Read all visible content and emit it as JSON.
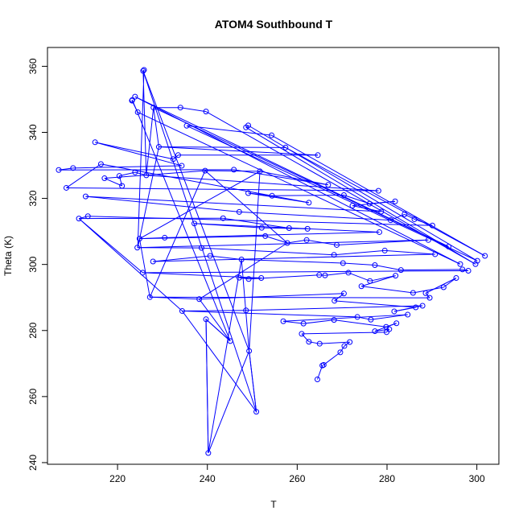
{
  "chart_data": {
    "type": "scatter",
    "title": "ATOM4 Southbound T",
    "xlabel": "T",
    "ylabel": "Theta (K)",
    "xlim": [
      204.4,
      304.9
    ],
    "ylim": [
      239.5,
      365.7
    ],
    "xticks": [
      220,
      240,
      260,
      280,
      300
    ],
    "yticks": [
      240,
      260,
      280,
      300,
      320,
      340,
      360
    ],
    "grid": false,
    "legend": "none",
    "color": "#0000ff",
    "marker": "open-circle",
    "connected": true,
    "points": [
      [
        225.9,
        358.9
      ],
      [
        225.7,
        358.6
      ],
      [
        250.9,
        255.4
      ],
      [
        249.3,
        273.8
      ],
      [
        240.2,
        242.9
      ],
      [
        239.7,
        283.4
      ],
      [
        245.1,
        276.8
      ],
      [
        223.3,
        349.8
      ],
      [
        223.2,
        349.6
      ],
      [
        224.5,
        346.1
      ],
      [
        296.3,
        300.1
      ],
      [
        223.9,
        350.8
      ],
      [
        293.7,
        305.4
      ],
      [
        228.0,
        347.5
      ],
      [
        234.0,
        347.5
      ],
      [
        239.7,
        346.3
      ],
      [
        299.7,
        300.1
      ],
      [
        248.6,
        341.5
      ],
      [
        249.1,
        342.1
      ],
      [
        300.1,
        301.1
      ],
      [
        235.4,
        342.0
      ],
      [
        254.3,
        339.1
      ],
      [
        301.8,
        302.6
      ],
      [
        257.4,
        335.4
      ],
      [
        229.2,
        335.6
      ],
      [
        264.6,
        333.1
      ],
      [
        233.5,
        333.1
      ],
      [
        232.4,
        331.9
      ],
      [
        215.0,
        337.0
      ],
      [
        234.3,
        329.9
      ],
      [
        210.1,
        329.2
      ],
      [
        206.9,
        328.6
      ],
      [
        245.9,
        328.7
      ],
      [
        266.9,
        324.1
      ],
      [
        251.7,
        328.2
      ],
      [
        239.5,
        328.4
      ],
      [
        217.1,
        326.1
      ],
      [
        221.0,
        323.8
      ],
      [
        220.4,
        326.8
      ],
      [
        223.9,
        327.9
      ],
      [
        226.4,
        327.0
      ],
      [
        278.1,
        322.3
      ],
      [
        208.6,
        323.2
      ],
      [
        216.3,
        330.4
      ],
      [
        262.6,
        318.7
      ],
      [
        249.1,
        321.6
      ],
      [
        254.4,
        320.8
      ],
      [
        270.4,
        321.0
      ],
      [
        276.1,
        318.4
      ],
      [
        281.8,
        319.1
      ],
      [
        272.3,
        317.8
      ],
      [
        278.7,
        316.0
      ],
      [
        212.9,
        320.6
      ],
      [
        247.1,
        315.9
      ],
      [
        280.8,
        313.4
      ],
      [
        283.9,
        315.2
      ],
      [
        286.1,
        313.7
      ],
      [
        290.1,
        311.8
      ],
      [
        213.4,
        314.6
      ],
      [
        211.4,
        313.9
      ],
      [
        243.5,
        314.0
      ],
      [
        258.2,
        311.0
      ],
      [
        262.3,
        310.8
      ],
      [
        252.1,
        311.1
      ],
      [
        237.1,
        312.4
      ],
      [
        278.3,
        309.8
      ],
      [
        230.5,
        308.1
      ],
      [
        224.9,
        307.8
      ],
      [
        252.9,
        308.6
      ],
      [
        257.8,
        306.5
      ],
      [
        262.1,
        307.4
      ],
      [
        268.8,
        305.9
      ],
      [
        289.2,
        307.4
      ],
      [
        224.4,
        305.1
      ],
      [
        238.7,
        305.0
      ],
      [
        268.2,
        302.9
      ],
      [
        279.5,
        304.2
      ],
      [
        290.7,
        303.1
      ],
      [
        227.9,
        300.9
      ],
      [
        240.6,
        302.6
      ],
      [
        247.6,
        301.5
      ],
      [
        270.2,
        300.4
      ],
      [
        277.3,
        299.8
      ],
      [
        283.1,
        298.3
      ],
      [
        296.8,
        298.5
      ],
      [
        298.1,
        298.1
      ],
      [
        225.6,
        297.5
      ],
      [
        252.0,
        295.9
      ],
      [
        247.1,
        296.0
      ],
      [
        249.2,
        295.6
      ],
      [
        264.9,
        296.8
      ],
      [
        266.2,
        296.7
      ],
      [
        271.4,
        297.5
      ],
      [
        276.2,
        295.0
      ],
      [
        281.9,
        296.6
      ],
      [
        274.3,
        293.4
      ],
      [
        285.8,
        291.4
      ],
      [
        292.6,
        293.1
      ],
      [
        295.4,
        295.9
      ],
      [
        288.6,
        291.3
      ],
      [
        289.5,
        289.9
      ],
      [
        227.2,
        290.1
      ],
      [
        238.2,
        289.5
      ],
      [
        270.4,
        291.2
      ],
      [
        268.3,
        289.0
      ],
      [
        286.4,
        287.0
      ],
      [
        281.6,
        285.8
      ],
      [
        287.9,
        287.5
      ],
      [
        248.6,
        286.1
      ],
      [
        234.4,
        285.9
      ],
      [
        273.4,
        284.1
      ],
      [
        276.4,
        283.3
      ],
      [
        284.6,
        284.8
      ],
      [
        256.9,
        282.8
      ],
      [
        261.4,
        282.1
      ],
      [
        268.2,
        283.2
      ],
      [
        279.8,
        281.1
      ],
      [
        282.1,
        282.2
      ],
      [
        277.3,
        279.8
      ],
      [
        280.5,
        280.4
      ],
      [
        279.9,
        279.5
      ],
      [
        261.0,
        279.0
      ],
      [
        262.6,
        276.6
      ],
      [
        265.0,
        276.0
      ],
      [
        271.7,
        276.5
      ],
      [
        270.5,
        275.3
      ],
      [
        269.6,
        273.4
      ],
      [
        265.9,
        269.6
      ],
      [
        265.6,
        269.4
      ],
      [
        264.5,
        265.2
      ]
    ],
    "path": [
      [
        225.9,
        358.9
      ],
      [
        224.5,
        305.1
      ],
      [
        229.2,
        335.6
      ],
      [
        228.0,
        347.5
      ],
      [
        226.4,
        327.0
      ],
      [
        225.7,
        358.6
      ],
      [
        249.3,
        273.8
      ],
      [
        247.6,
        301.5
      ],
      [
        240.2,
        242.9
      ],
      [
        239.7,
        283.4
      ],
      [
        245.1,
        276.8
      ],
      [
        238.2,
        289.5
      ],
      [
        257.8,
        306.5
      ],
      [
        239.5,
        328.4
      ],
      [
        227.2,
        290.1
      ],
      [
        224.9,
        307.8
      ],
      [
        251.7,
        328.2
      ],
      [
        249.3,
        273.8
      ],
      [
        250.9,
        255.4
      ],
      [
        234.4,
        285.9
      ],
      [
        211.4,
        313.9
      ],
      [
        225.6,
        297.5
      ]
    ]
  }
}
